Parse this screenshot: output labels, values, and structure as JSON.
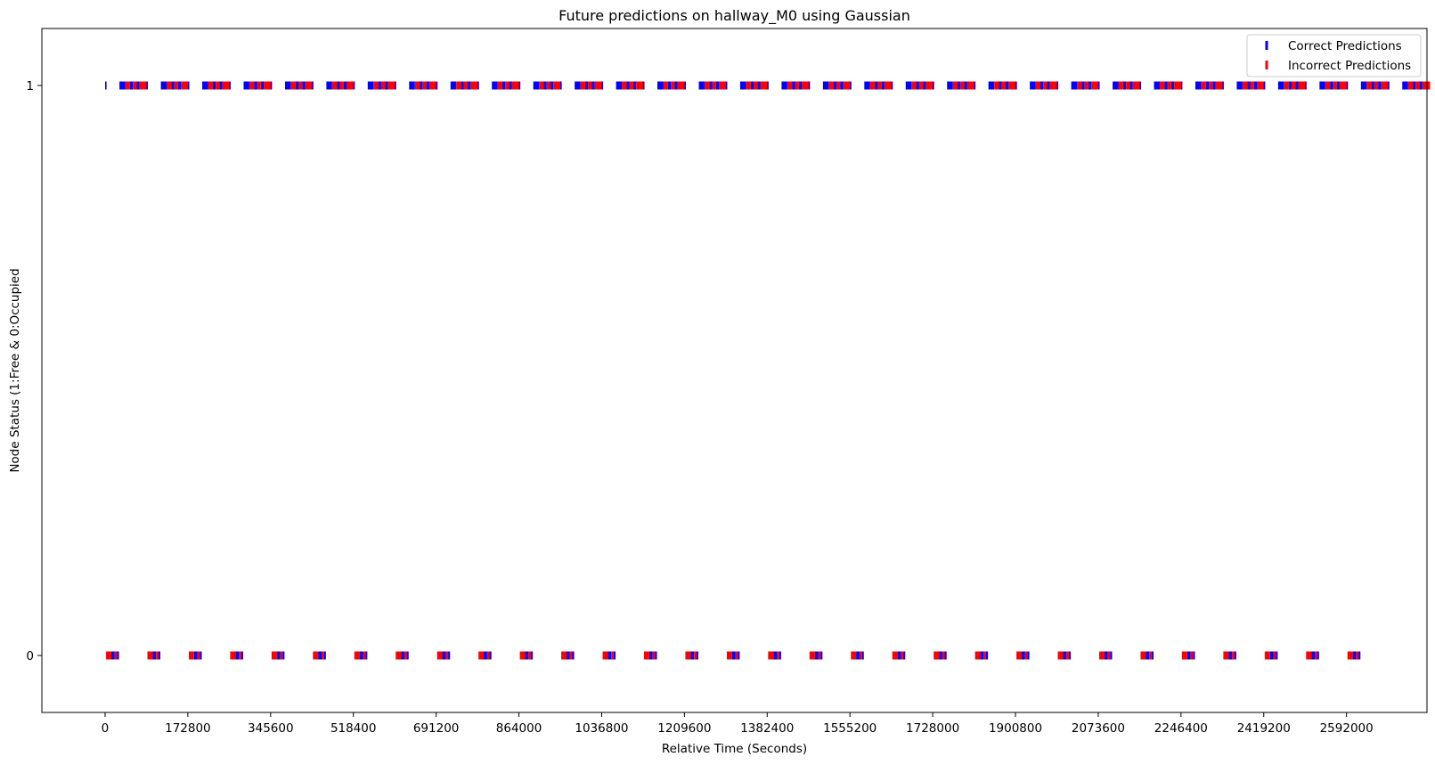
{
  "chart_data": {
    "type": "scatter",
    "title": "Future predictions on hallway_M0 using Gaussian",
    "xlabel": "Relative Time (Seconds)",
    "ylabel": "Node Status (1:Free & 0:Occupied",
    "xlim": [
      -132000,
      2760000
    ],
    "ylim": [
      -0.1,
      1.1
    ],
    "xticks": [
      0,
      172800,
      345600,
      518400,
      691200,
      864000,
      1036800,
      1209600,
      1382400,
      1555200,
      1728000,
      1900800,
      2073600,
      2246400,
      2419200,
      2592000
    ],
    "yticks": [
      0,
      1
    ],
    "grid": false,
    "legend": {
      "position": "top-right",
      "entries": [
        {
          "label": "Correct Predictions",
          "color": "#0000ff"
        },
        {
          "label": "Incorrect Predictions",
          "color": "#ff0000"
        }
      ]
    },
    "period": 86400,
    "segments_y1": [
      {
        "color": "#0000ff",
        "x": [
          0,
          3000
        ]
      },
      {
        "color": "#0000ff",
        "x": [
          30000,
          42000
        ]
      },
      {
        "color": "#ff0000",
        "x": [
          42000,
          52000
        ]
      },
      {
        "color": "#0000ff",
        "x": [
          52000,
          58000
        ]
      },
      {
        "color": "#ff0000",
        "x": [
          58000,
          66000
        ]
      },
      {
        "color": "#0000ff",
        "x": [
          66000,
          72000
        ]
      },
      {
        "color": "#ff0000",
        "x": [
          72000,
          88000
        ]
      }
    ],
    "segments_y0": [
      {
        "color": "#ff0000",
        "x": [
          2000,
          13000
        ]
      },
      {
        "color": "#0000ff",
        "x": [
          13000,
          20000
        ]
      },
      {
        "color": "#ff0000",
        "x": [
          20000,
          25000
        ]
      },
      {
        "color": "#0000ff",
        "x": [
          25000,
          29000
        ]
      }
    ],
    "cycles_y1": 32,
    "cycles_y0": 31
  }
}
